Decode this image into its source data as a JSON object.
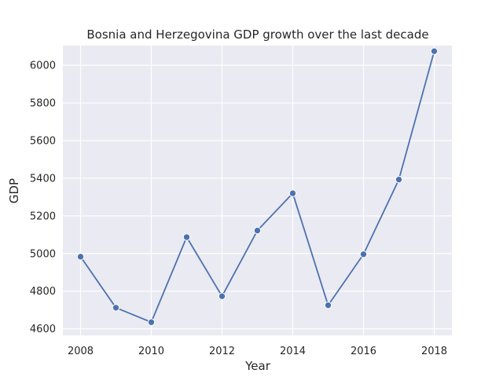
{
  "chart_data": {
    "type": "line",
    "title": "Bosnia and Herzegovina GDP growth over the last decade",
    "xlabel": "Year",
    "ylabel": "GDP",
    "xlim": [
      2007.5,
      2018.5
    ],
    "ylim": [
      4565,
      6105
    ],
    "xticks": [
      2008,
      2010,
      2012,
      2014,
      2016,
      2018
    ],
    "yticks": [
      4600,
      4800,
      5000,
      5200,
      5400,
      5600,
      5800,
      6000
    ],
    "grid": true,
    "series": [
      {
        "x": [
          2008,
          2009,
          2010,
          2011,
          2012,
          2013,
          2014,
          2015,
          2016,
          2017,
          2018
        ],
        "values": [
          4983,
          4712,
          4635,
          5087,
          4773,
          5122,
          5320,
          4725,
          4996,
          5393,
          6075
        ],
        "color": "#4c72b0",
        "marker": "circle"
      }
    ],
    "colors": {
      "plot_background": "#eaeaf2",
      "grid": "#ffffff",
      "text": "#262626"
    }
  }
}
